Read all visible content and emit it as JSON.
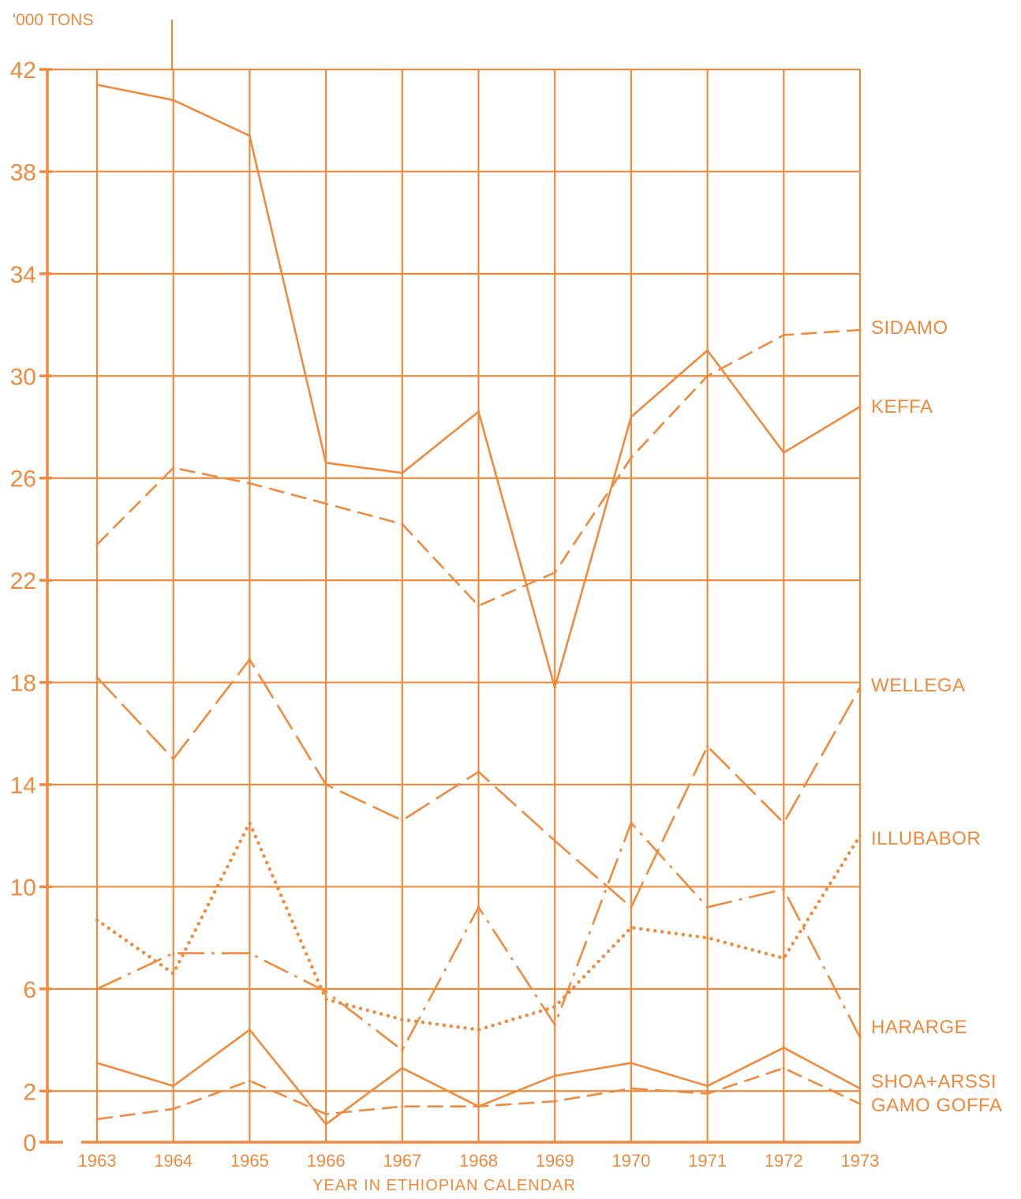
{
  "colors": {
    "ink": "#f08a3c"
  },
  "chart_data": {
    "type": "line",
    "unit_label": "'000 TONS",
    "xlabel": "YEAR IN ETHIOPIAN CALENDAR",
    "ylabel": "",
    "ylim": [
      0,
      42
    ],
    "yticks": [
      0,
      2,
      6,
      10,
      14,
      18,
      22,
      26,
      30,
      34,
      38,
      42
    ],
    "x": [
      1963,
      1964,
      1965,
      1966,
      1967,
      1968,
      1969,
      1970,
      1971,
      1972,
      1973
    ],
    "x_labels": [
      "1963",
      "1964",
      "1965",
      "1966",
      "1967",
      "1968",
      "1969",
      "1970",
      "1971",
      "1972",
      "1973"
    ],
    "grid": true,
    "series": [
      {
        "name": "SIDAMO",
        "style": "dashed",
        "values": [
          23.4,
          26.4,
          25.8,
          25.0,
          24.2,
          21.0,
          22.3,
          26.8,
          30.0,
          31.6,
          31.8
        ]
      },
      {
        "name": "KEFFA",
        "style": "solid",
        "values": [
          41.4,
          40.8,
          39.4,
          26.6,
          26.2,
          28.6,
          17.8,
          28.4,
          31.0,
          27.0,
          28.8
        ]
      },
      {
        "name": "WELLEGA",
        "style": "long-dash",
        "values": [
          18.2,
          15.0,
          18.9,
          14.0,
          12.6,
          14.5,
          11.8,
          9.2,
          15.5,
          12.5,
          17.8
        ]
      },
      {
        "name": "ILLUBABOR",
        "style": "dotted",
        "values": [
          8.7,
          6.6,
          12.5,
          5.6,
          4.8,
          4.4,
          5.3,
          8.4,
          8.0,
          7.2,
          12.0
        ]
      },
      {
        "name": "HARARGE",
        "style": "mixed",
        "values": [
          6.0,
          7.4,
          7.4,
          5.9,
          3.6,
          9.2,
          4.6,
          12.5,
          9.2,
          9.9,
          4.1
        ]
      },
      {
        "name": "SHOA+ARSSI",
        "style": "solid",
        "values": [
          3.1,
          2.2,
          4.4,
          0.7,
          2.9,
          1.4,
          2.6,
          3.1,
          2.2,
          3.7,
          2.1
        ]
      },
      {
        "name": "GAMO GOFFA",
        "style": "dashed",
        "values": [
          0.9,
          1.3,
          2.4,
          1.1,
          1.4,
          1.4,
          1.6,
          2.1,
          1.9,
          2.9,
          1.5
        ]
      }
    ]
  }
}
